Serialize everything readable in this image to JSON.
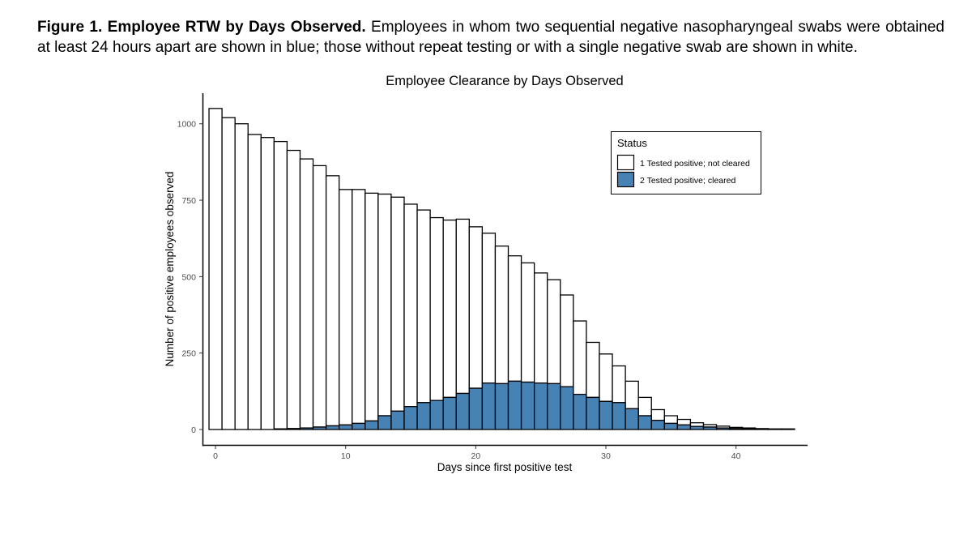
{
  "caption": {
    "label": "Figure 1. Employee RTW by Days Observed.",
    "text": " Employees in whom two sequential negative nasopharyngeal swabs were obtained at least 24 hours apart are shown in blue; those without repeat testing or with a single negative swab are shown in white."
  },
  "chart_data": {
    "type": "bar",
    "title": "Employee Clearance by Days Observed",
    "xlabel": "Days since first positive test",
    "ylabel": "Number of positive employees observed",
    "xlim": [
      -1,
      45.5
    ],
    "ylim": [
      0,
      1100
    ],
    "x_ticks": [
      0,
      10,
      20,
      30,
      40
    ],
    "y_ticks": [
      0,
      250,
      500,
      750,
      1000
    ],
    "grid": false,
    "stacked": true,
    "legend": {
      "title": "Status",
      "position": "top-right",
      "entries": [
        {
          "label": "1 Tested positive; not cleared",
          "color": "#ffffff"
        },
        {
          "label": "2 Tested positive; cleared",
          "color": "#4682b4"
        }
      ]
    },
    "x": [
      0,
      1,
      2,
      3,
      4,
      5,
      6,
      7,
      8,
      9,
      10,
      11,
      12,
      13,
      14,
      15,
      16,
      17,
      18,
      19,
      20,
      21,
      22,
      23,
      24,
      25,
      26,
      27,
      28,
      29,
      30,
      31,
      32,
      33,
      34,
      35,
      36,
      37,
      38,
      39,
      40,
      41,
      42,
      43,
      44,
      45
    ],
    "series": [
      {
        "name": "1 Tested positive; not cleared",
        "color": "#ffffff",
        "values": [
          1050,
          1020,
          1000,
          965,
          955,
          940,
          910,
          880,
          855,
          818,
          770,
          765,
          745,
          725,
          700,
          662,
          630,
          598,
          580,
          570,
          528,
          490,
          450,
          410,
          390,
          360,
          340,
          300,
          240,
          180,
          155,
          120,
          90,
          60,
          35,
          25,
          18,
          12,
          8,
          6,
          4,
          3,
          2,
          1,
          1,
          0
        ]
      },
      {
        "name": "2 Tested positive; cleared",
        "color": "#4682b4",
        "values": [
          0,
          0,
          0,
          0,
          0,
          2,
          3,
          5,
          8,
          12,
          15,
          20,
          28,
          45,
          60,
          75,
          88,
          95,
          105,
          118,
          135,
          152,
          150,
          158,
          155,
          152,
          150,
          140,
          115,
          105,
          92,
          88,
          68,
          45,
          30,
          20,
          15,
          10,
          8,
          5,
          3,
          2,
          1,
          1,
          1,
          0
        ]
      }
    ]
  }
}
